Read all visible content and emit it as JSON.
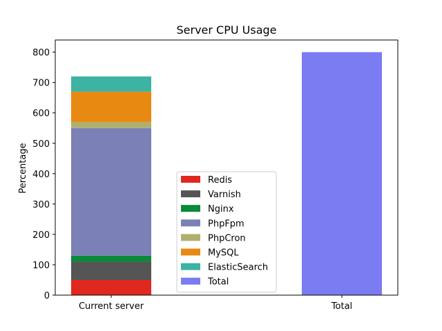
{
  "chart_data": {
    "type": "bar",
    "stacked": true,
    "title": "Server CPU Usage",
    "xlabel": "",
    "ylabel": "Percentage",
    "ylim": [
      0,
      840
    ],
    "yticks": [
      0,
      100,
      200,
      300,
      400,
      500,
      600,
      700,
      800
    ],
    "categories": [
      "Current server",
      "Total"
    ],
    "series": [
      {
        "name": "Redis",
        "color": "#e0281f",
        "values": [
          50,
          0
        ]
      },
      {
        "name": "Varnish",
        "color": "#555555",
        "values": [
          60,
          0
        ]
      },
      {
        "name": "Nginx",
        "color": "#0a8a3a",
        "values": [
          20,
          0
        ]
      },
      {
        "name": "PhpFpm",
        "color": "#7b80b6",
        "values": [
          420,
          0
        ]
      },
      {
        "name": "PhpCron",
        "color": "#b0b06e",
        "values": [
          20,
          0
        ]
      },
      {
        "name": "MySQL",
        "color": "#e88a12",
        "values": [
          100,
          0
        ]
      },
      {
        "name": "ElasticSearch",
        "color": "#3cb3a3",
        "values": [
          50,
          0
        ]
      },
      {
        "name": "Total",
        "color": "#7b7bf2",
        "values": [
          0,
          800
        ]
      }
    ],
    "grid": false,
    "legend_position": "lower-center"
  }
}
